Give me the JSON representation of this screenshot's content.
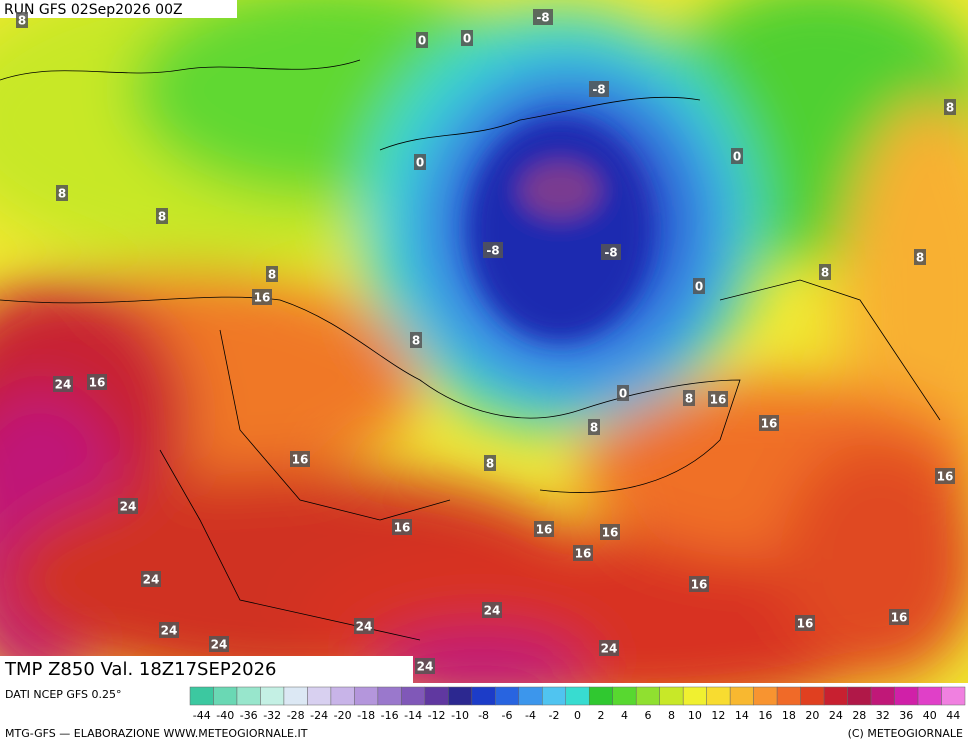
{
  "header": {
    "title": "RUN GFS 02Sep2026 00Z"
  },
  "footer": {
    "title": "TMP Z850 Val. 18Z17SEP2026",
    "source": "DATI NCEP GFS 0.25°",
    "credit": "MTG-GFS — ELABORAZIONE WWW.METEOGIORNALE.IT",
    "copyright": "(C) METEOGIORNALE"
  },
  "colorbar": {
    "ticks": [
      -44,
      -40,
      -36,
      -32,
      -28,
      -24,
      -20,
      -18,
      -16,
      -14,
      -12,
      -10,
      -8,
      -6,
      -4,
      -2,
      0,
      2,
      4,
      6,
      8,
      10,
      12,
      14,
      16,
      18,
      20,
      24,
      28,
      32,
      36,
      40,
      44
    ],
    "colors": [
      "#3cc8a0",
      "#6ad8b4",
      "#98e6cc",
      "#c4f0e4",
      "#dce8f4",
      "#d8d0f0",
      "#c8b4e8",
      "#b496dc",
      "#9a78cc",
      "#8058b8",
      "#6038a0",
      "#2c2890",
      "#1c3cc8",
      "#2864e0",
      "#3c96ec",
      "#50c4f0",
      "#38dcd0",
      "#30c830",
      "#58d830",
      "#90e030",
      "#c8e828",
      "#f0f030",
      "#f8dc30",
      "#f8b830",
      "#f89430",
      "#f06a28",
      "#e04020",
      "#c82030",
      "#b01848",
      "#c01878",
      "#d020a8",
      "#e040c8",
      "#f080e0"
    ]
  },
  "map": {
    "labels": [
      8,
      0,
      0,
      -8,
      -8,
      8,
      0,
      0,
      8,
      8,
      -8,
      -8,
      8,
      8,
      8,
      0,
      16,
      8,
      24,
      16,
      0,
      8,
      16,
      8,
      16,
      8,
      16,
      16,
      24,
      16,
      16,
      16,
      16,
      24,
      16,
      24,
      16,
      16,
      24,
      24,
      24,
      24,
      24
    ]
  }
}
